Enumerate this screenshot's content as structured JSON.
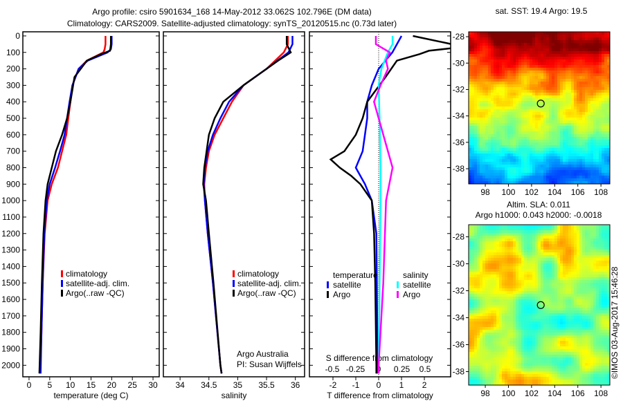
{
  "title_line1": "Argo profile: csiro 5901634_168 14-May-2012 33.062S 102.796E (DM data)",
  "title_line2": "Climatology: CARS2009. Satellite-adjusted climatology: synTS_20120515.nc (0.73d later)",
  "colors": {
    "climatology": "#ff0000",
    "satellite": "#0000ff",
    "argo": "#000000",
    "salinity_satellite": "#00ffff",
    "salinity_argo": "#ff00ff"
  },
  "chart_data": [
    {
      "type": "line",
      "id": "temperature",
      "xlabel": "temperature (deg C)",
      "ylabel": "",
      "xlim": [
        -1.5,
        31.5
      ],
      "ylim": [
        2070,
        -25
      ],
      "xticks": [
        0,
        5,
        10,
        15,
        20,
        25,
        30
      ],
      "yticks": [
        0,
        100,
        200,
        300,
        400,
        500,
        600,
        700,
        800,
        900,
        1000,
        1100,
        1200,
        1300,
        1400,
        1500,
        1600,
        1700,
        1800,
        1900,
        2000
      ],
      "legend": [
        "climatology",
        "satellite-adj. clim.",
        "Argo(..raw -QC)"
      ],
      "series": [
        {
          "name": "climatology",
          "color": "#ff0000",
          "depth": [
            0,
            50,
            80,
            100,
            150,
            200,
            300,
            400,
            500,
            600,
            700,
            800,
            900,
            1000,
            1200,
            1500,
            1800,
            2050
          ],
          "values": [
            18.5,
            18.5,
            18.3,
            18,
            14,
            12,
            10.5,
            10,
            9.5,
            9,
            8,
            7,
            5.5,
            4.5,
            3.8,
            3.3,
            3,
            2.7
          ]
        },
        {
          "name": "satellite-adj. clim.",
          "color": "#0000ff",
          "depth": [
            0,
            50,
            80,
            100,
            150,
            200,
            300,
            400,
            500,
            600,
            700,
            800,
            900,
            1000,
            1200,
            1500,
            1800,
            2050
          ],
          "values": [
            20,
            20,
            19.8,
            19,
            14.2,
            12,
            10.5,
            9.8,
            9.2,
            8.6,
            7.5,
            6.3,
            5,
            4.3,
            3.7,
            3.3,
            3,
            2.8
          ]
        },
        {
          "name": "Argo(..raw -QC)",
          "color": "#000000",
          "depth": [
            0,
            50,
            90,
            110,
            150,
            250,
            400,
            500,
            600,
            700,
            800,
            900,
            1000,
            1200,
            1500,
            1800,
            2050
          ],
          "values": [
            19.8,
            19.8,
            19.6,
            17.5,
            14,
            11,
            10,
            9.2,
            8,
            6.5,
            5.5,
            4.5,
            4,
            3.5,
            3.1,
            2.8,
            2.5
          ]
        }
      ]
    },
    {
      "type": "line",
      "id": "salinity",
      "xlabel": "salinity",
      "xlim": [
        33.71,
        36.16
      ],
      "ylim": [
        2070,
        -25
      ],
      "xticks": [
        34,
        34.5,
        35,
        35.5,
        36
      ],
      "legend": [
        "climatology",
        "satellite-adj. clim.",
        "Argo(..raw -QC)"
      ],
      "annotation": [
        "Argo Australia",
        "PI: Susan Wijffels"
      ],
      "series": [
        {
          "name": "climatology",
          "color": "#ff0000",
          "depth": [
            0,
            50,
            100,
            200,
            300,
            400,
            500,
            600,
            700,
            800,
            900,
            1000,
            1200,
            1500,
            2000,
            2050
          ],
          "values": [
            35.87,
            35.87,
            35.8,
            35.5,
            35.1,
            34.9,
            34.75,
            34.6,
            34.5,
            34.45,
            34.42,
            34.43,
            34.48,
            34.57,
            34.7,
            34.72
          ]
        },
        {
          "name": "satellite-adj. clim.",
          "color": "#0000ff",
          "depth": [
            0,
            50,
            100,
            200,
            300,
            400,
            500,
            600,
            700,
            800,
            900,
            1000,
            1200,
            1500,
            2000,
            2050
          ],
          "values": [
            35.95,
            35.95,
            35.88,
            35.5,
            35.1,
            34.85,
            34.7,
            34.57,
            34.48,
            34.43,
            34.41,
            34.43,
            34.48,
            34.57,
            34.7,
            34.72
          ]
        },
        {
          "name": "Argo(..raw -QC)",
          "color": "#000000",
          "depth": [
            0,
            50,
            100,
            150,
            300,
            400,
            500,
            600,
            800,
            900,
            1000,
            1200,
            1500,
            2000,
            2050
          ],
          "values": [
            35.85,
            35.85,
            35.92,
            35.7,
            35.1,
            34.75,
            34.6,
            34.5,
            34.42,
            34.4,
            34.45,
            34.5,
            34.58,
            34.7,
            34.72
          ]
        }
      ]
    },
    {
      "type": "line",
      "id": "difference",
      "xlabel": "T difference from climatology",
      "xlabel2": "S difference from climatology",
      "xlim": [
        -3.03,
        3.15
      ],
      "ylim": [
        2070,
        -25
      ],
      "xticks": [
        -2,
        -1,
        0,
        1,
        2
      ],
      "s_ticks": [
        -0.5,
        -0.25,
        0,
        0.25,
        0.5
      ],
      "legend": {
        "temperature_header": "temperature",
        "salinity_header": "salinity",
        "temperature": [
          "satellite",
          "Argo"
        ],
        "salinity": [
          "satellite",
          "Argo"
        ]
      },
      "series": [
        {
          "name": "T satellite",
          "color": "#0000ff",
          "scale": "T",
          "depth": [
            0,
            100,
            200,
            300,
            400,
            500,
            600,
            700,
            800,
            900,
            1000,
            1100,
            1200,
            1500,
            2000,
            2050
          ],
          "values": [
            1,
            0.6,
            0,
            -0.3,
            -0.5,
            -0.5,
            -0.6,
            -0.7,
            -1,
            -0.6,
            -0.3,
            -0.2,
            -0.1,
            -0.08,
            -0.05,
            -0.05
          ]
        },
        {
          "name": "T Argo",
          "color": "#000000",
          "scale": "T",
          "depth": [
            0,
            50,
            70,
            90,
            110,
            150,
            250,
            400,
            500,
            600,
            700,
            750,
            800,
            850,
            900,
            1000,
            1200,
            1500,
            2000,
            2050
          ],
          "values": [
            1.5,
            3.2,
            3.5,
            2.2,
            1.8,
            0.8,
            0.3,
            -0.5,
            -0.7,
            -1,
            -1.5,
            -2.1,
            -1.7,
            -1.2,
            -0.8,
            -0.3,
            -0.2,
            -0.15,
            -0.1,
            -0.1
          ]
        },
        {
          "name": "S satellite",
          "color": "#00ffff",
          "scale": "S",
          "depth": [
            0,
            50,
            100,
            200,
            300,
            500,
            800,
            1000,
            1500,
            2000,
            2050
          ],
          "values": [
            0.15,
            0.15,
            0.1,
            0.03,
            0,
            0.01,
            0.02,
            0.02,
            0.01,
            0,
            0
          ]
        },
        {
          "name": "S Argo",
          "color": "#ff00ff",
          "scale": "S",
          "depth": [
            0,
            50,
            100,
            150,
            200,
            300,
            400,
            600,
            800,
            1000,
            1500,
            2000,
            2050
          ],
          "values": [
            -0.03,
            -0.03,
            0.12,
            0.08,
            0.1,
            0.02,
            -0.05,
            0.05,
            0.15,
            0.08,
            0.05,
            0,
            0
          ]
        }
      ]
    },
    {
      "type": "heatmap",
      "id": "sst_map",
      "title": "sat. SST: 19.4  Argo: 19.5",
      "xlim": [
        96.56,
        108.77
      ],
      "ylim": [
        -27.63,
        -39.15
      ],
      "xticks": [
        98,
        100,
        102,
        104,
        106,
        108
      ],
      "yticks": [
        -28,
        -30,
        -32,
        -34,
        -36,
        -38
      ],
      "marker": {
        "lon": 102.796,
        "lat": -33.062
      }
    },
    {
      "type": "heatmap",
      "id": "sla_map",
      "title1": "Altim. SLA: 0.011",
      "title2": "Argo h1000: 0.043 h2000: -0.0018",
      "xlim": [
        96.56,
        108.77
      ],
      "ylim": [
        -27.1,
        -39.0
      ],
      "xticks": [
        98,
        100,
        102,
        104,
        106,
        108
      ],
      "yticks": [
        -28,
        -30,
        -32,
        -34,
        -36,
        -38
      ],
      "marker": {
        "lon": 102.796,
        "lat": -33.062
      }
    }
  ],
  "credit": "©IMOS 03-Aug-2017 15:46:28"
}
